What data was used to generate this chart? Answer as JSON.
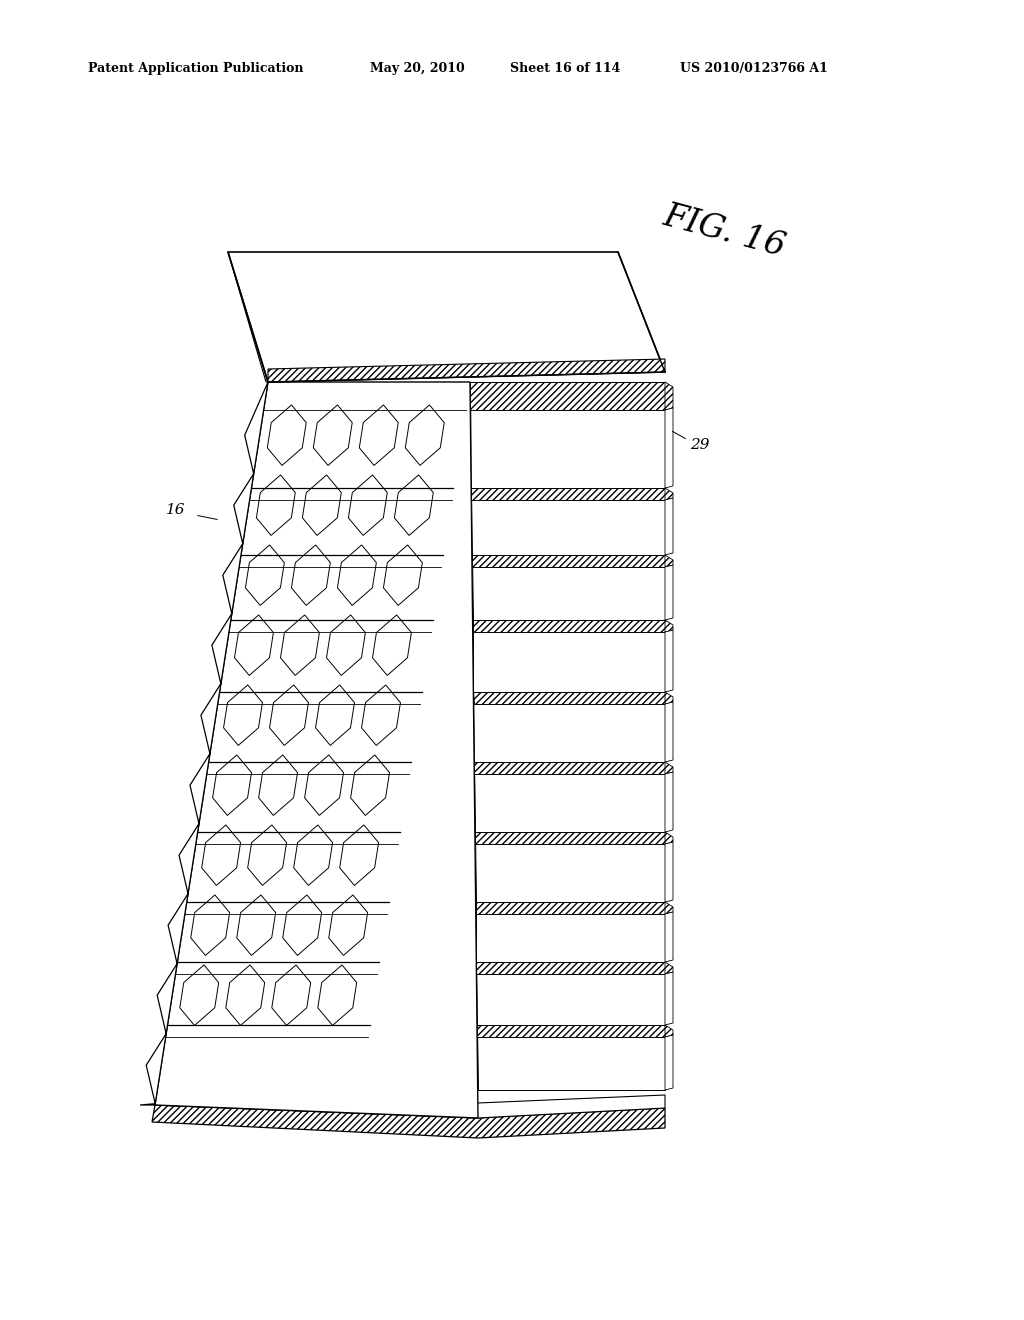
{
  "title": "Patent Application Publication",
  "date": "May 20, 2010",
  "sheet": "Sheet 16 of 114",
  "patent_num": "US 2010/0123766 A1",
  "fig_label": "FIG. 16",
  "label_16": "16",
  "label_29": "29",
  "bg_color": "#ffffff",
  "line_color": "#000000"
}
